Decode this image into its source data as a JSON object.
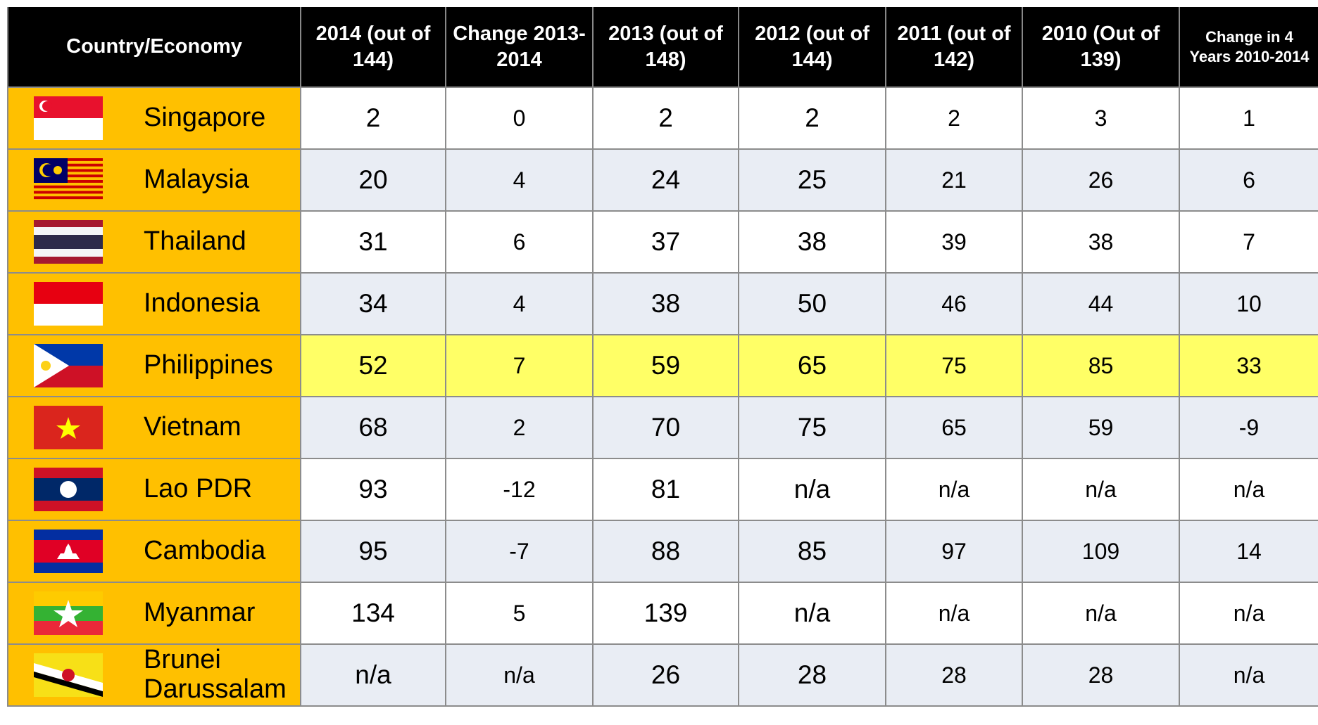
{
  "table": {
    "header": [
      "Country/Economy",
      "2014 (out of 144)",
      "Change 2013-2014",
      "2013 (out of 148)",
      "2012 (out of 144)",
      "2011 (out of 142)",
      "2010 (Out of 139)",
      "Change in 4 Years 2010-2014"
    ],
    "rows": [
      [
        "Singapore",
        2,
        0,
        2,
        2,
        2,
        3,
        1
      ],
      [
        "Malaysia",
        20,
        4,
        24,
        25,
        21,
        26,
        6
      ],
      [
        "Thailand",
        31,
        6,
        37,
        38,
        39,
        38,
        7
      ],
      [
        "Indonesia",
        34,
        4,
        38,
        50,
        46,
        44,
        10
      ],
      [
        "Philippines",
        52,
        7,
        59,
        65,
        75,
        85,
        33
      ],
      [
        "Vietnam",
        68,
        2,
        70,
        75,
        65,
        59,
        -9
      ],
      [
        "Lao PDR",
        93,
        -12,
        81,
        "n/a",
        "n/a",
        "n/a",
        "n/a"
      ],
      [
        "Cambodia",
        95,
        -7,
        88,
        85,
        97,
        109,
        14
      ],
      [
        "Myanmar",
        134,
        5,
        139,
        "n/a",
        "n/a",
        "n/a",
        "n/a"
      ],
      [
        "Brunei Darussalam",
        "n/a",
        "n/a",
        26,
        28,
        28,
        28,
        "n/a"
      ]
    ]
  }
}
